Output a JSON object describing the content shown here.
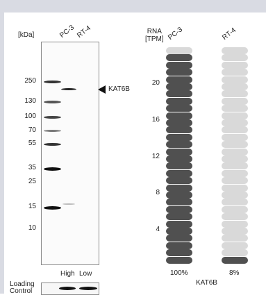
{
  "western_blot": {
    "kda_label": "[kDa]",
    "lanes": [
      "PC-3",
      "RT-4"
    ],
    "markers": [
      "250",
      "130",
      "100",
      "70",
      "55",
      "35",
      "25",
      "15",
      "10"
    ],
    "target_label": "KAT6B",
    "expression_labels": [
      "High",
      "Low"
    ],
    "loading_control_label": "Loading\nControl"
  },
  "rna": {
    "header": "RNA\n[TPM]",
    "cell_lines": [
      "PC-3",
      "RT-4"
    ],
    "axis_ticks": [
      "20",
      "16",
      "12",
      "8",
      "4"
    ],
    "percents": [
      "100%",
      "8%"
    ],
    "gene_label": "KAT6B",
    "columns": [
      {
        "name": "PC-3",
        "filled_from_bottom": 29,
        "total": 30,
        "filled_color": "#505050",
        "empty_color": "#d9d9d9"
      },
      {
        "name": "RT-4",
        "filled_from_bottom": 1,
        "total": 30,
        "filled_color": "#505050",
        "empty_color": "#d9d9d9"
      }
    ]
  }
}
